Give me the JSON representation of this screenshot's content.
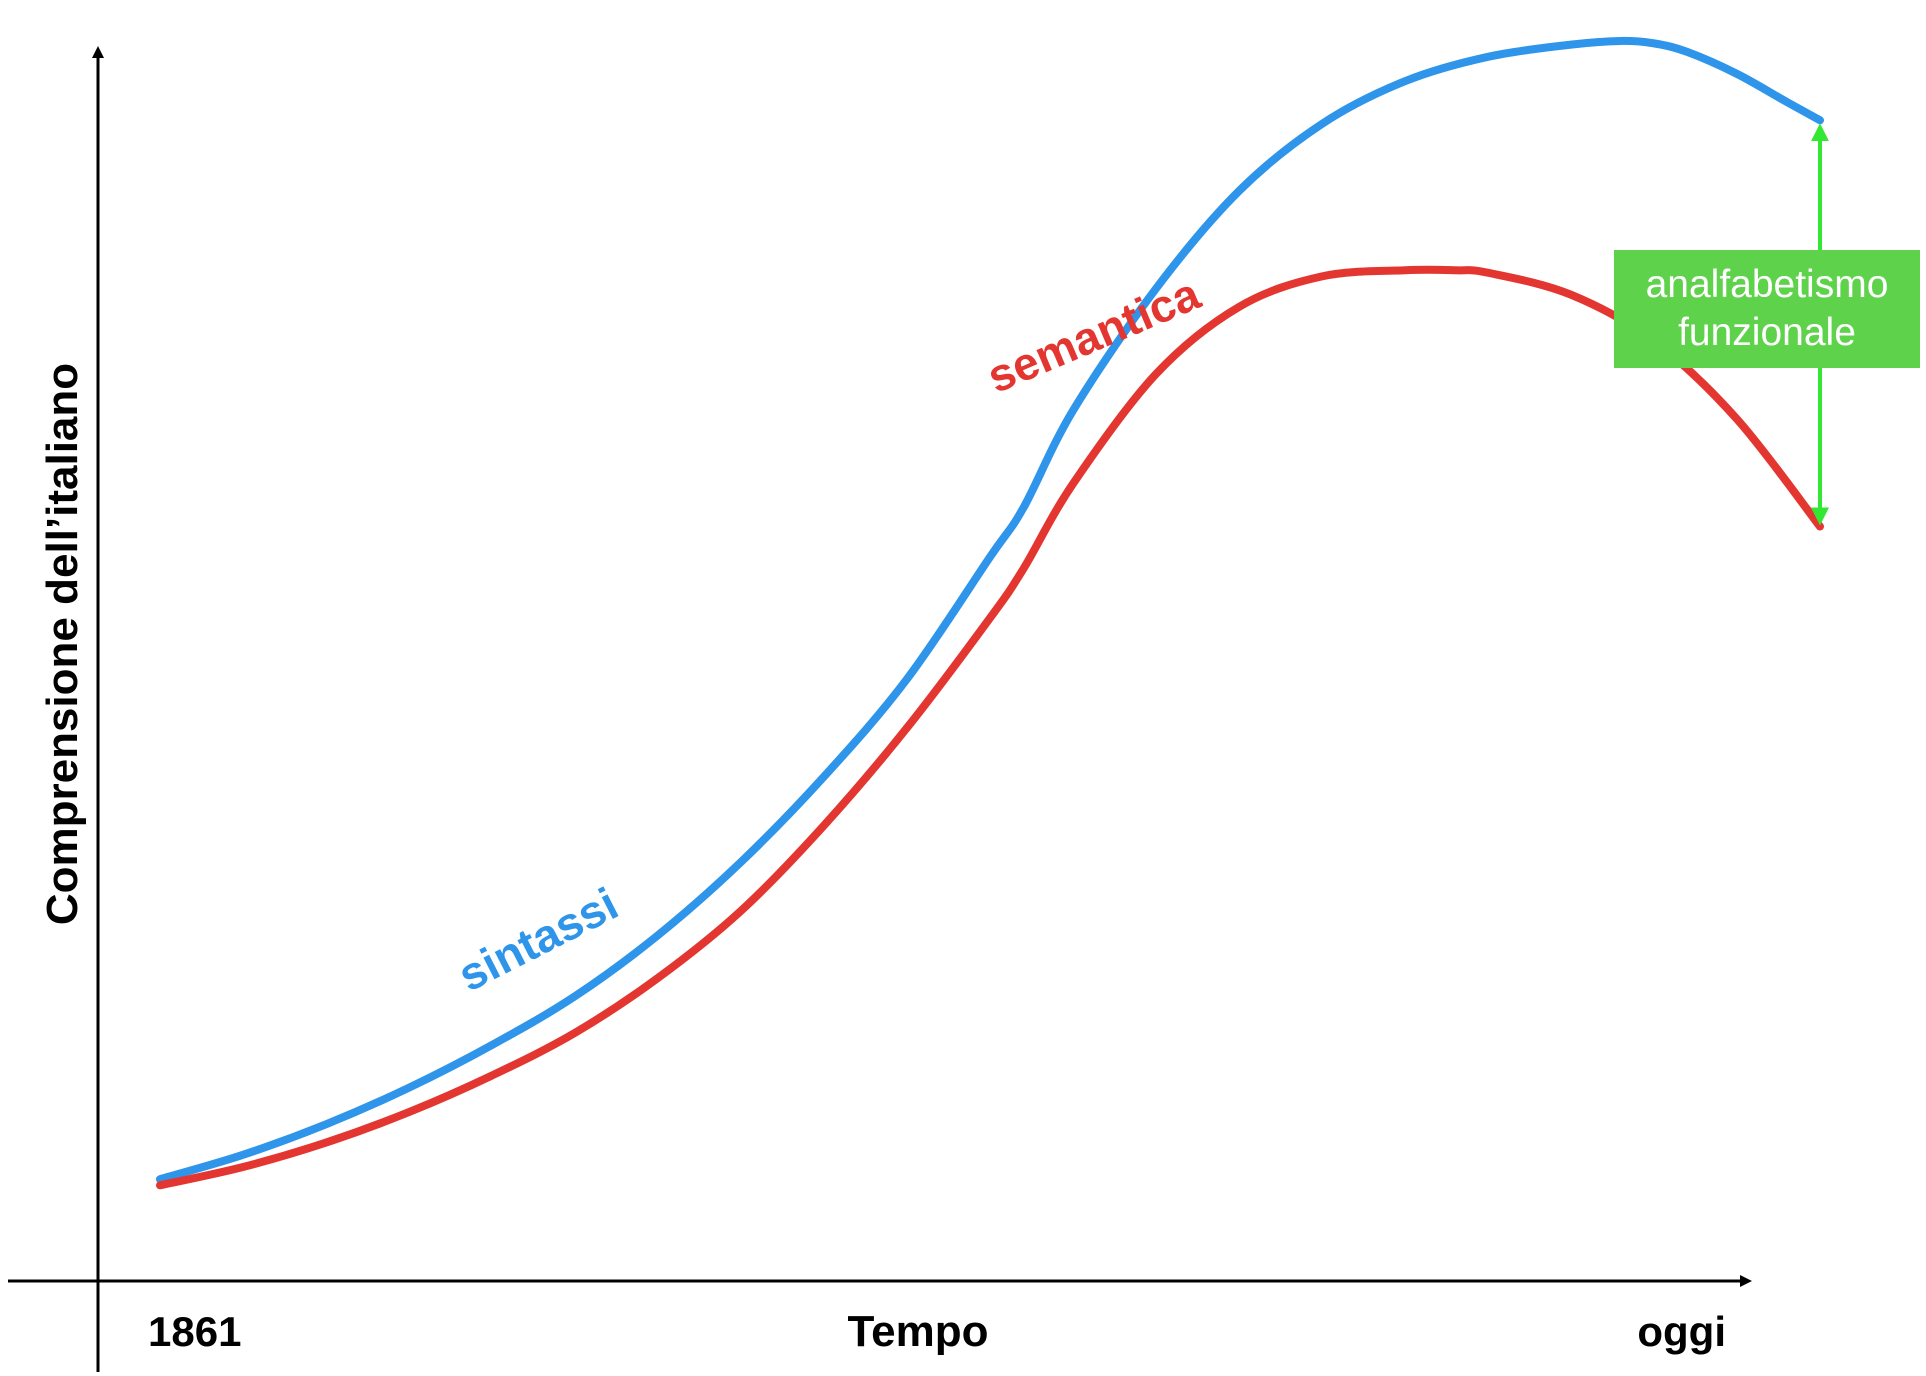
{
  "chart_data": {
    "type": "line",
    "title": "",
    "xlabel": "Tempo",
    "ylabel": "Comprensione dell’italiano",
    "x_tick_labels": {
      "start": "1861",
      "end": "oggi"
    },
    "x_range": [
      0,
      100
    ],
    "ylim": [
      0,
      100
    ],
    "grid": false,
    "series": [
      {
        "name": "sintassi",
        "color": "#2e95ea",
        "x": [
          0,
          5,
          10,
          15,
          20,
          25,
          30,
          35,
          40,
          45,
          50,
          52,
          55,
          60,
          65,
          70,
          75,
          80,
          85,
          88,
          90,
          92,
          95,
          98,
          100
        ],
        "y": [
          4,
          6,
          8.5,
          11.5,
          15,
          19,
          24,
          30,
          37,
          45,
          55,
          59,
          67,
          77,
          85,
          90.5,
          94,
          96,
          97,
          97.3,
          97.1,
          96.4,
          94.6,
          92.3,
          90.8
        ]
      },
      {
        "name": "semantica",
        "color": "#e43630",
        "x": [
          0,
          5,
          10,
          15,
          20,
          25,
          30,
          35,
          40,
          45,
          50,
          52,
          55,
          60,
          65,
          70,
          75,
          78,
          80,
          85,
          90,
          95,
          100
        ],
        "y": [
          3.5,
          5,
          7,
          9.5,
          12.5,
          16,
          20.5,
          26,
          33,
          41,
          50,
          54,
          61,
          70,
          75.5,
          78,
          78.5,
          78.5,
          78.3,
          76.5,
          72.7,
          66.3,
          57.5
        ]
      }
    ],
    "annotation": {
      "text_lines": [
        "analfabetismo",
        "funzionale"
      ],
      "box_color": "#5fd24b",
      "arrow_color": "#33e833",
      "x": 100,
      "y_from": 57.5,
      "y_to": 90.8
    }
  }
}
